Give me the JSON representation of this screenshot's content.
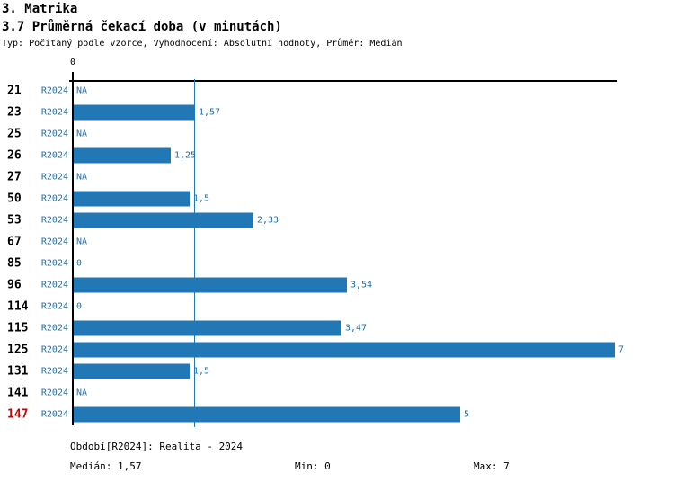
{
  "header": {
    "title": "3. Matrika",
    "subtitle": "3.7 Průměrná čekací doba (v minutách)",
    "meta": "Typ: Počítaný podle vzorce, Vyhodnocení: Absolutní hodnoty, Průměr: Medián"
  },
  "chart_data": {
    "type": "bar",
    "orientation": "horizontal",
    "title": "3.7 Průměrná čekací doba (v minutách)",
    "series_label": "R2024",
    "axis_top_tick_label": "0",
    "categories": [
      "21",
      "23",
      "25",
      "26",
      "27",
      "50",
      "53",
      "67",
      "85",
      "96",
      "114",
      "115",
      "125",
      "131",
      "141",
      "147"
    ],
    "values": [
      null,
      1.57,
      null,
      1.25,
      null,
      1.5,
      2.33,
      null,
      0,
      3.54,
      0,
      3.47,
      7,
      1.5,
      null,
      5
    ],
    "value_labels": [
      "NA",
      "1,57",
      "NA",
      "1,25",
      "NA",
      "1,5",
      "2,33",
      "NA",
      "0",
      "3,54",
      "0",
      "3,47",
      "7",
      "1,5",
      "NA",
      "5"
    ],
    "highlighted_category": "147",
    "xlim": [
      0,
      7
    ],
    "median_line_value": 1.57,
    "grid": false,
    "legend": false,
    "colors": {
      "bar": "#2277b5",
      "label_text": "#1d6fa8",
      "highlight_text": "#cc0000",
      "axis": "#000000",
      "median_line": "#2277b5"
    }
  },
  "footer": {
    "period": "Období[R2024]: Realita - 2024",
    "median": "Medián: 1,57",
    "min": "Min: 0",
    "max": "Max: 7"
  }
}
